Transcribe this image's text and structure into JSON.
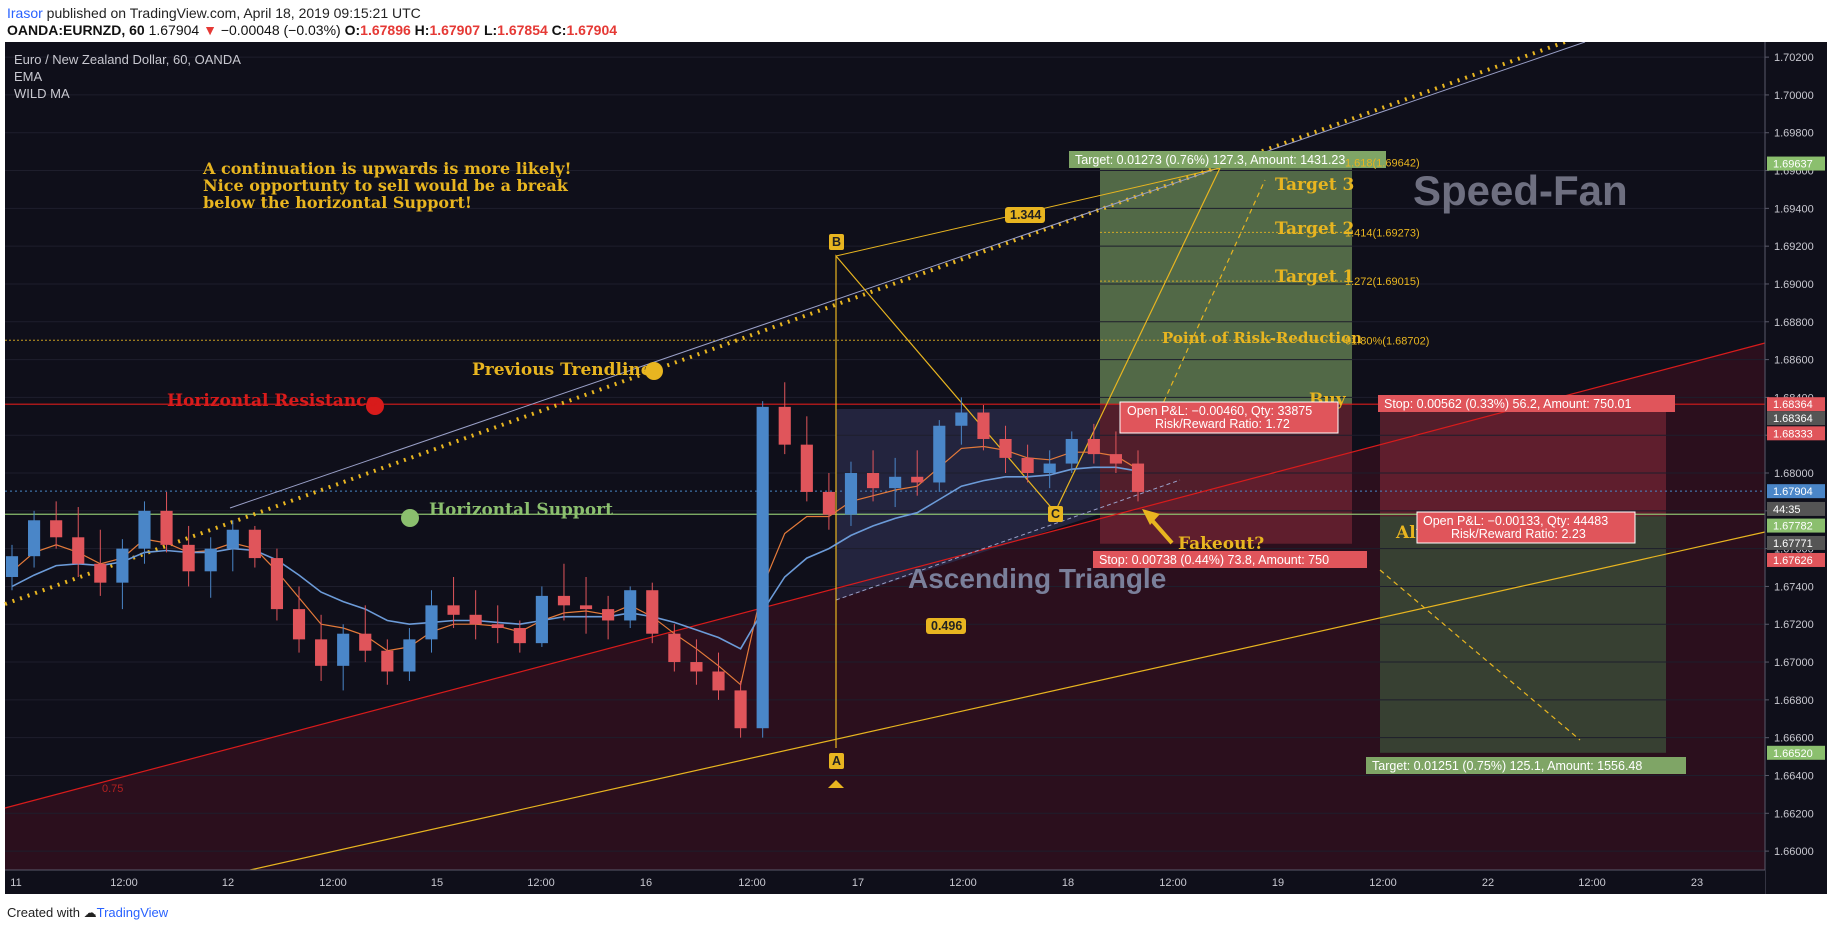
{
  "header": {
    "author": "Irasor",
    "published_text": " published on TradingView.com, April 18, 2019 09:15:21 UTC",
    "symbol": "OANDA:EURNZD, 60",
    "price": "1.67904",
    "change": "−0.00048 (−0.03%)",
    "o_label": "O:",
    "o": "1.67896",
    "h_label": "H:",
    "h": "1.67907",
    "l_label": "L:",
    "l": "1.67854",
    "c_label": "C:",
    "c": "1.67904"
  },
  "footer": {
    "created_with": "Created with",
    "brand": "TradingView"
  },
  "chart_data": {
    "type": "candlestick",
    "title": "Euro / New Zealand Dollar, 60, OANDA",
    "indicators": [
      "EMA",
      "WILD MA"
    ],
    "colors": {
      "up": "#4a86c8",
      "down": "#e0555b",
      "background": "#0f0f1a",
      "ema": "#e47a3a",
      "wild_ma": "#6c9bd8",
      "resistance": "#d81b1b",
      "support": "#8bbf6e",
      "trend": "#e8b520"
    },
    "y_axis": {
      "ylim": [
        1.659,
        1.7028
      ],
      "ticks": [
        "1.70200",
        "1.70000",
        "1.69800",
        "1.69600",
        "1.69400",
        "1.69200",
        "1.69000",
        "1.68800",
        "1.68600",
        "1.68400",
        "1.68200",
        "1.68000",
        "1.67800",
        "1.67600",
        "1.67400",
        "1.67200",
        "1.67000",
        "1.66800",
        "1.66600",
        "1.66400",
        "1.66200",
        "1.66000"
      ],
      "badges": [
        {
          "text": "1.69637",
          "value": 1.69637,
          "color": "#8bbf6e"
        },
        {
          "text": "1.68364",
          "value": 1.68364,
          "color": "#e0555b"
        },
        {
          "text": "1.68364",
          "value": 1.6829,
          "color": "#555"
        },
        {
          "text": "1.68333",
          "value": 1.6821,
          "color": "#e0555b"
        },
        {
          "text": "1.67904",
          "value": 1.67904,
          "color": "#4a86c8"
        },
        {
          "text": "44:35",
          "value": 1.6781,
          "color": "#555"
        },
        {
          "text": "1.67782",
          "value": 1.67722,
          "color": "#8bbf6e"
        },
        {
          "text": "1.67771",
          "value": 1.6763,
          "color": "#555"
        },
        {
          "text": "1.67626",
          "value": 1.6754,
          "color": "#e0555b"
        },
        {
          "text": "1.66520",
          "value": 1.6652,
          "color": "#8bbf6e"
        }
      ]
    },
    "x_axis": {
      "tick_labels": [
        "11",
        "12:00",
        "12",
        "12:00",
        "15",
        "12:00",
        "16",
        "12:00",
        "17",
        "12:00",
        "18",
        "12:00",
        "19",
        "12:00",
        "22",
        "12:00",
        "23"
      ]
    },
    "candles": [
      [
        1.6745,
        1.6762,
        1.6738,
        1.6756
      ],
      [
        1.6756,
        1.678,
        1.675,
        1.6775
      ],
      [
        1.6775,
        1.6785,
        1.676,
        1.6766
      ],
      [
        1.6766,
        1.6782,
        1.6745,
        1.6752
      ],
      [
        1.6752,
        1.677,
        1.6735,
        1.6742
      ],
      [
        1.6742,
        1.6765,
        1.6728,
        1.676
      ],
      [
        1.676,
        1.6785,
        1.6752,
        1.678
      ],
      [
        1.678,
        1.679,
        1.6758,
        1.6762
      ],
      [
        1.6762,
        1.6772,
        1.674,
        1.6748
      ],
      [
        1.6748,
        1.6766,
        1.6734,
        1.676
      ],
      [
        1.676,
        1.6775,
        1.6748,
        1.677
      ],
      [
        1.677,
        1.6772,
        1.675,
        1.6755
      ],
      [
        1.6755,
        1.676,
        1.6722,
        1.6728
      ],
      [
        1.6728,
        1.674,
        1.6705,
        1.6712
      ],
      [
        1.6712,
        1.6725,
        1.669,
        1.6698
      ],
      [
        1.6698,
        1.672,
        1.6685,
        1.6715
      ],
      [
        1.6715,
        1.673,
        1.67,
        1.6706
      ],
      [
        1.6706,
        1.6712,
        1.6688,
        1.6695
      ],
      [
        1.6695,
        1.6718,
        1.669,
        1.6712
      ],
      [
        1.6712,
        1.6738,
        1.6705,
        1.673
      ],
      [
        1.673,
        1.6745,
        1.6718,
        1.6725
      ],
      [
        1.6725,
        1.6738,
        1.6712,
        1.672
      ],
      [
        1.672,
        1.673,
        1.671,
        1.6718
      ],
      [
        1.6718,
        1.6722,
        1.6705,
        1.671
      ],
      [
        1.671,
        1.674,
        1.6708,
        1.6735
      ],
      [
        1.6735,
        1.6752,
        1.6722,
        1.673
      ],
      [
        1.673,
        1.6745,
        1.6715,
        1.6728
      ],
      [
        1.6728,
        1.6735,
        1.6712,
        1.6722
      ],
      [
        1.6722,
        1.674,
        1.6718,
        1.6738
      ],
      [
        1.6738,
        1.6742,
        1.671,
        1.6715
      ],
      [
        1.6715,
        1.672,
        1.6695,
        1.67
      ],
      [
        1.67,
        1.6712,
        1.6688,
        1.6695
      ],
      [
        1.6695,
        1.6705,
        1.668,
        1.6685
      ],
      [
        1.6685,
        1.669,
        1.666,
        1.6665
      ],
      [
        1.6665,
        1.6838,
        1.666,
        1.6835
      ],
      [
        1.6835,
        1.6848,
        1.681,
        1.6815
      ],
      [
        1.6815,
        1.683,
        1.6785,
        1.679
      ],
      [
        1.679,
        1.68,
        1.677,
        1.6778
      ],
      [
        1.6778,
        1.6806,
        1.6772,
        1.68
      ],
      [
        1.68,
        1.6812,
        1.6785,
        1.6792
      ],
      [
        1.6792,
        1.6808,
        1.6782,
        1.6798
      ],
      [
        1.6798,
        1.6812,
        1.6788,
        1.6795
      ],
      [
        1.6795,
        1.6828,
        1.679,
        1.6825
      ],
      [
        1.6825,
        1.684,
        1.6815,
        1.6832
      ],
      [
        1.6832,
        1.6836,
        1.6812,
        1.6818
      ],
      [
        1.6818,
        1.6825,
        1.68,
        1.6808
      ],
      [
        1.6808,
        1.6815,
        1.6795,
        1.68
      ],
      [
        1.68,
        1.6812,
        1.6792,
        1.6805
      ],
      [
        1.6805,
        1.6822,
        1.68,
        1.6818
      ],
      [
        1.6818,
        1.6826,
        1.6805,
        1.681
      ],
      [
        1.681,
        1.6822,
        1.68,
        1.6805
      ],
      [
        1.6805,
        1.6812,
        1.6785,
        1.679
      ]
    ],
    "ema": [
      1.6748,
      1.6758,
      1.6762,
      1.6758,
      1.6752,
      1.6755,
      1.6765,
      1.6763,
      1.6758,
      1.6759,
      1.6763,
      1.676,
      1.6748,
      1.6734,
      1.672,
      1.6718,
      1.6714,
      1.6706,
      1.6708,
      1.6716,
      1.672,
      1.672,
      1.6719,
      1.6716,
      1.6722,
      1.6726,
      1.6727,
      1.6725,
      1.673,
      1.6724,
      1.6715,
      1.6707,
      1.6698,
      1.6688,
      1.674,
      1.6768,
      1.6777,
      1.6777,
      1.6785,
      1.6788,
      1.6791,
      1.6793,
      1.6803,
      1.6813,
      1.6814,
      1.6812,
      1.6808,
      1.6807,
      1.6811,
      1.6811,
      1.6809,
      1.6802
    ],
    "wild_ma": [
      1.674,
      1.6746,
      1.6751,
      1.6752,
      1.6751,
      1.6753,
      1.6758,
      1.6759,
      1.6758,
      1.6758,
      1.676,
      1.6759,
      1.6754,
      1.6746,
      1.6737,
      1.6732,
      1.6728,
      1.6722,
      1.672,
      1.6721,
      1.6722,
      1.6722,
      1.6721,
      1.672,
      1.6722,
      1.6724,
      1.6724,
      1.6724,
      1.6726,
      1.6724,
      1.6721,
      1.6717,
      1.6713,
      1.6707,
      1.6727,
      1.6745,
      1.6755,
      1.676,
      1.6767,
      1.6772,
      1.6776,
      1.6779,
      1.6786,
      1.6793,
      1.6796,
      1.6798,
      1.6798,
      1.6799,
      1.6802,
      1.6803,
      1.6803,
      1.6801
    ],
    "horizontal_levels": [
      {
        "name": "Horizontal Resistance",
        "value": 1.68364,
        "color": "#d81b1b"
      },
      {
        "name": "Horizontal Support",
        "value": 1.67782,
        "color": "#8bbf6e"
      }
    ],
    "fib_levels": [
      {
        "label": "1.618(1.69642)",
        "value": 1.69642
      },
      {
        "label": "1.414(1.69273)",
        "value": 1.69273
      },
      {
        "label": "1.272(1.69015)",
        "value": 1.69015
      },
      {
        "label": "61.80%(1.68702)",
        "value": 1.68702
      }
    ],
    "abc_points": [
      {
        "label": "A",
        "value": 1.66555
      },
      {
        "label": "B",
        "value": 1.69185
      },
      {
        "label": "C",
        "value": 1.67786
      }
    ],
    "ratios": [
      "1.344",
      "0.496"
    ],
    "side_labels": [
      "0.75"
    ],
    "annotations": {
      "note_lines": [
        "A continuation is upwards is more likely!",
        "Nice opportunty to sell would be a break",
        "below the horizontal Support!"
      ],
      "previous_trendline": "Previous Trendline",
      "horizontal_resistance": "Horizontal Resistance",
      "horizontal_support": "Horizontal Support",
      "target3": "Target 3",
      "target2": "Target 2",
      "target1": "Target 1",
      "risk_reduction": "Point of Risk-Reduction",
      "buy": "Buy",
      "alt": "Alt",
      "fakeout": "Fakeout?",
      "ascending_triangle": "Ascending Triangle",
      "speed_fan": "Speed-Fan"
    },
    "long_position": {
      "target_text": "Target: 0.01273 (0.76%) 127.3, Amount: 1431.23",
      "stop_text": "Stop: 0.00738 (0.44%) 73.8, Amount: 750",
      "pnl_text": "Open P&L: −0.00460, Qty: 33875",
      "rr_text": "Risk/Reward Ratio: 1.72",
      "entry": 1.68364,
      "target": 1.69637,
      "stop": 1.67626
    },
    "short_position": {
      "target_text": "Target: 0.01251 (0.75%) 125.1, Amount: 1556.48",
      "stop_text": "Stop: 0.00562 (0.33%) 56.2, Amount: 750.01",
      "pnl_text": "Open P&L: −0.00133, Qty: 44483",
      "rr_text": "Risk/Reward Ratio: 2.23",
      "entry": 1.67771,
      "target": 1.6652,
      "stop": 1.68333
    }
  }
}
